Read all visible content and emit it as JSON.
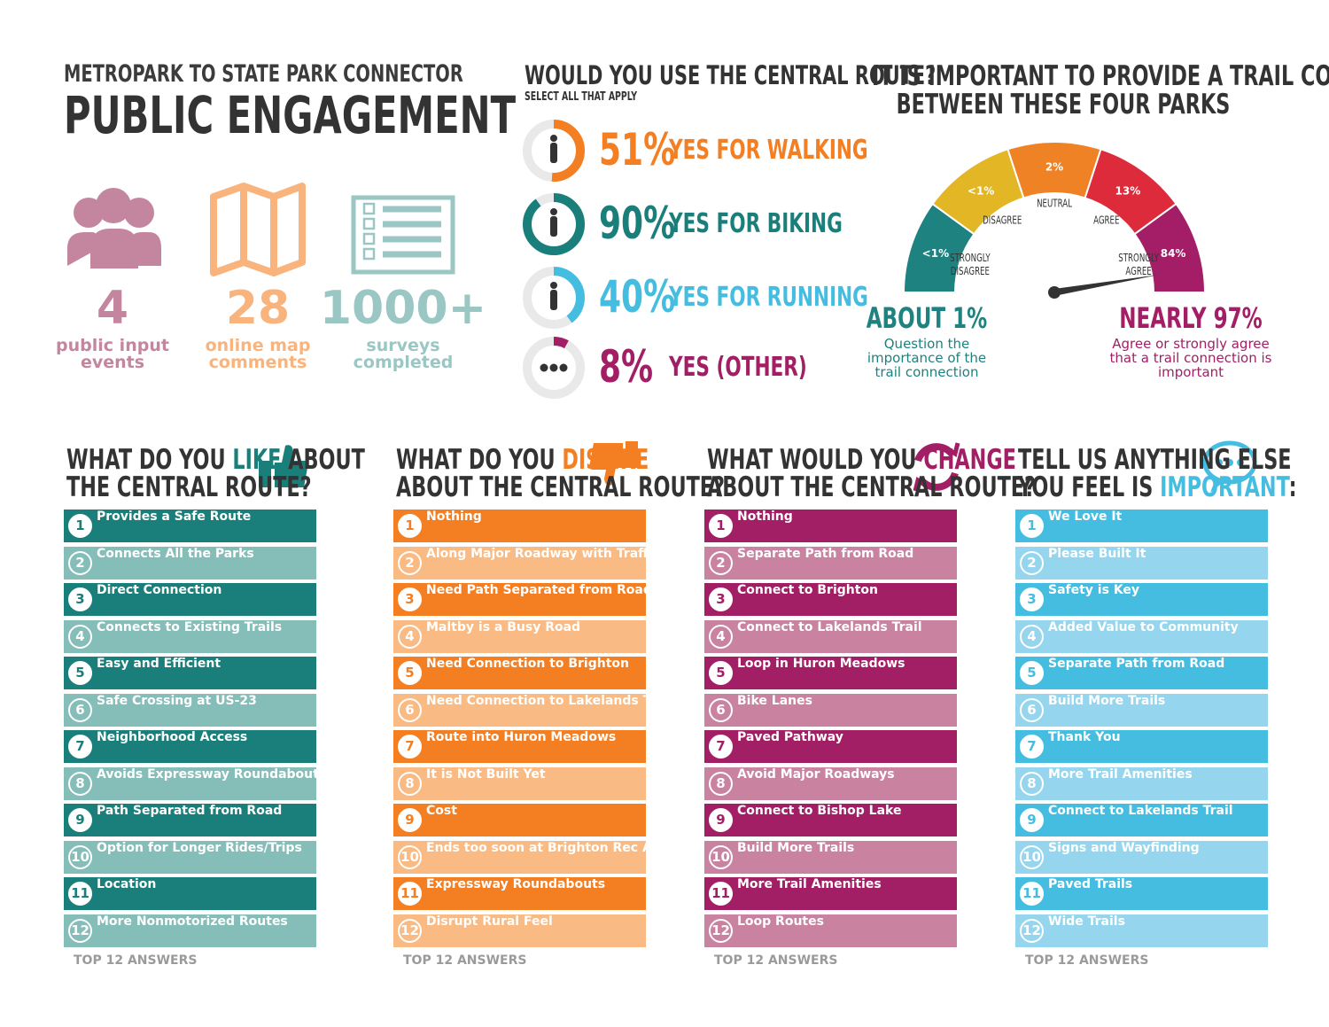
{
  "header": {
    "subtitle": "METROPARK TO STATE PARK CONNECTOR",
    "title": "PUBLIC ENGAGEMENT"
  },
  "stats": [
    {
      "value": "4",
      "label": "public input events",
      "color": "#c4869f"
    },
    {
      "value": "28",
      "label": "online map comments",
      "color": "#f9b47e"
    },
    {
      "value": "1000+",
      "label": "surveys completed",
      "color": "#9ac6c3"
    }
  ],
  "central_route": {
    "title": "WOULD YOU USE THE CENTRAL ROUTE?",
    "subtitle": "SELECT ALL THAT APPLY",
    "options": [
      {
        "value": 51,
        "value_label": "51%",
        "label": "YES FOR WALKING",
        "color": "#f37f22"
      },
      {
        "value": 90,
        "value_label": "90%",
        "label": "YES FOR BIKING",
        "color": "#1a7f7a"
      },
      {
        "value": 40,
        "value_label": "40%",
        "label": "YES FOR RUNNING",
        "color": "#45bde1"
      },
      {
        "value": 8,
        "value_label": "8%",
        "label": "YES (OTHER)",
        "color": "#a21f66"
      }
    ]
  },
  "importance": {
    "title_lines": [
      "IT IS IMPORTANT TO PROVIDE A TRAIL CONNECTION",
      "BETWEEN THESE FOUR PARKS"
    ],
    "segments": [
      {
        "label_lines": [
          "STRONGLY",
          "DISAGREE"
        ],
        "value_label": "<1%",
        "color": "#1d8280"
      },
      {
        "label_lines": [
          "DISAGREE"
        ],
        "value_label": "<1%",
        "color": "#e3b626"
      },
      {
        "label_lines": [
          "NEUTRAL"
        ],
        "value_label": "2%",
        "color": "#f08226"
      },
      {
        "label_lines": [
          "AGREE"
        ],
        "value_label": "13%",
        "color": "#dd2b3c"
      },
      {
        "label_lines": [
          "STRONGLY",
          "AGREE"
        ],
        "value_label": "84%",
        "color": "#a31e66"
      }
    ],
    "summaries": [
      {
        "headline": "ABOUT 1%",
        "text_lines": [
          "Question the",
          "importance of the",
          "trail connection"
        ],
        "color": "#1d8280"
      },
      {
        "headline": "NEARLY 97%",
        "text_lines": [
          "Agree or strongly agree",
          "that a trail connection is",
          "important"
        ],
        "color": "#a31e66"
      }
    ]
  },
  "lists": [
    {
      "title_lines": [
        [
          {
            "text": "WHAT DO YOU "
          },
          {
            "text": "LIKE",
            "accent": true
          },
          {
            "text": " ABOUT"
          }
        ],
        [
          {
            "text": "THE CENTRAL ROUTE?"
          }
        ]
      ],
      "color": "#1a7f7a",
      "light_color": "#85bdb8",
      "footer": "TOP 12 ANSWERS",
      "items": [
        {
          "rank": 1,
          "text": "Provides a Safe Route"
        },
        {
          "rank": 2,
          "text": "Connects All the Parks"
        },
        {
          "rank": 3,
          "text": "Direct Connection"
        },
        {
          "rank": 4,
          "text": "Connects to Existing Trails"
        },
        {
          "rank": 5,
          "text": "Easy and Efficient"
        },
        {
          "rank": 6,
          "text": "Safe Crossing at US-23"
        },
        {
          "rank": 7,
          "text": "Neighborhood Access"
        },
        {
          "rank": 8,
          "text": "Avoids Expressway Roundabouts"
        },
        {
          "rank": 9,
          "text": "Path Separated from Road"
        },
        {
          "rank": 10,
          "text": "Option for Longer Rides/Trips"
        },
        {
          "rank": 11,
          "text": "Location"
        },
        {
          "rank": 12,
          "text": "More Nonmotorized Routes"
        }
      ]
    },
    {
      "title_lines": [
        [
          {
            "text": "WHAT DO YOU "
          },
          {
            "text": "DISLIKE",
            "accent": true
          }
        ],
        [
          {
            "text": "ABOUT THE CENTRAL ROUTE?"
          }
        ]
      ],
      "color": "#f37f22",
      "light_color": "#f9bb83",
      "footer": "TOP 12 ANSWERS",
      "items": [
        {
          "rank": 1,
          "text": "Nothing"
        },
        {
          "rank": 2,
          "text": "Along Major Roadway with Traffic"
        },
        {
          "rank": 3,
          "text": "Need Path Separated from Road"
        },
        {
          "rank": 4,
          "text": "Maltby is a Busy Road"
        },
        {
          "rank": 5,
          "text": "Need Connection to Brighton"
        },
        {
          "rank": 6,
          "text": "Need Connection to Lakelands Trail"
        },
        {
          "rank": 7,
          "text": "Route into Huron Meadows"
        },
        {
          "rank": 8,
          "text": "It is Not Built Yet"
        },
        {
          "rank": 9,
          "text": "Cost"
        },
        {
          "rank": 10,
          "text": "Ends too soon at Brighton Rec Area"
        },
        {
          "rank": 11,
          "text": "Expressway Roundabouts"
        },
        {
          "rank": 12,
          "text": "Disrupt Rural Feel"
        }
      ]
    },
    {
      "title_lines": [
        [
          {
            "text": "WHAT WOULD YOU "
          },
          {
            "text": "CHANGE",
            "accent": true
          }
        ],
        [
          {
            "text": "ABOUT THE CENTRAL ROUTE?"
          }
        ]
      ],
      "color": "#a21f66",
      "light_color": "#c983a0",
      "footer": "TOP 12 ANSWERS",
      "items": [
        {
          "rank": 1,
          "text": "Nothing"
        },
        {
          "rank": 2,
          "text": "Separate Path from Road"
        },
        {
          "rank": 3,
          "text": "Connect to Brighton"
        },
        {
          "rank": 4,
          "text": "Connect to Lakelands Trail"
        },
        {
          "rank": 5,
          "text": "Loop in Huron Meadows"
        },
        {
          "rank": 6,
          "text": "Bike Lanes"
        },
        {
          "rank": 7,
          "text": "Paved Pathway"
        },
        {
          "rank": 8,
          "text": "Avoid Major Roadways"
        },
        {
          "rank": 9,
          "text": "Connect to Bishop Lake"
        },
        {
          "rank": 10,
          "text": "Build More Trails"
        },
        {
          "rank": 11,
          "text": "More Trail Amenities"
        },
        {
          "rank": 12,
          "text": "Loop Routes"
        }
      ]
    },
    {
      "title_lines": [
        [
          {
            "text": "TELL US ANYTHING ELSE"
          }
        ],
        [
          {
            "text": "YOU FEEL IS "
          },
          {
            "text": "IMPORTANT",
            "accent": true
          },
          {
            "text": ":"
          }
        ]
      ],
      "color": "#45bde1",
      "light_color": "#95d6ee",
      "footer": "TOP 12 ANSWERS",
      "items": [
        {
          "rank": 1,
          "text": "We Love It"
        },
        {
          "rank": 2,
          "text": "Please Built It"
        },
        {
          "rank": 3,
          "text": "Safety is Key"
        },
        {
          "rank": 4,
          "text": "Added Value to Community"
        },
        {
          "rank": 5,
          "text": "Separate Path from Road"
        },
        {
          "rank": 6,
          "text": "Build More Trails"
        },
        {
          "rank": 7,
          "text": "Thank You"
        },
        {
          "rank": 8,
          "text": "More Trail Amenities"
        },
        {
          "rank": 9,
          "text": "Connect to Lakelands Trail"
        },
        {
          "rank": 10,
          "text": "Signs and Wayfinding"
        },
        {
          "rank": 11,
          "text": "Paved Trails"
        },
        {
          "rank": 12,
          "text": "Wide Trails"
        }
      ]
    }
  ]
}
